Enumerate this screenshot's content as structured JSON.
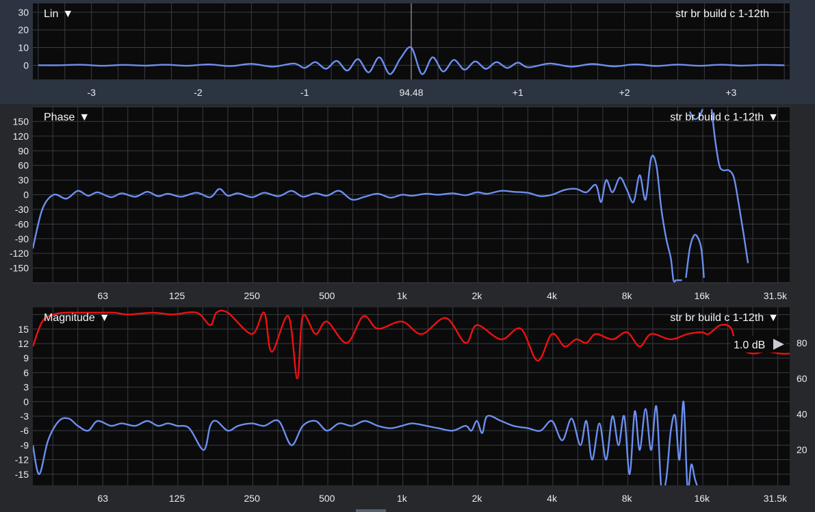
{
  "colors": {
    "background": "#2b3440",
    "plot_background": "#0b0b0c",
    "grid": "#3a3d42",
    "response_line": "#6c8ff0",
    "coherence_line": "#f01010",
    "text": "#e8ecf0"
  },
  "chart_data": [
    {
      "id": "impulse",
      "type": "line",
      "title": "Lin",
      "title_marker": "▼",
      "series_label": "str br build c 1-12th",
      "xlim": [
        -3.55,
        3.55
      ],
      "ylim": [
        -8,
        35
      ],
      "x_ticks": [
        -3,
        -2,
        -1,
        0,
        1,
        2,
        3
      ],
      "x_tick_labels": [
        "-3",
        "-2",
        "-1",
        "94.48",
        "+1",
        "+2",
        "+3"
      ],
      "y_ticks": [
        0,
        10,
        20,
        30
      ],
      "y_tick_labels": [
        "0",
        "10",
        "20",
        "30"
      ],
      "marker_x": 0,
      "grid": true,
      "series": [
        {
          "color": "#6c8ff0",
          "x": [
            -3.5,
            -3.3,
            -3.1,
            -2.9,
            -2.7,
            -2.5,
            -2.3,
            -2.1,
            -1.9,
            -1.7,
            -1.5,
            -1.3,
            -1.1,
            -1.0,
            -0.9,
            -0.8,
            -0.7,
            -0.6,
            -0.5,
            -0.4,
            -0.3,
            -0.2,
            -0.1,
            0,
            0.1,
            0.2,
            0.3,
            0.4,
            0.5,
            0.6,
            0.7,
            0.8,
            0.9,
            1.0,
            1.1,
            1.3,
            1.5,
            1.7,
            1.9,
            2.1,
            2.3,
            2.5,
            2.7,
            2.9,
            3.1,
            3.3,
            3.5
          ],
          "values": [
            0,
            0,
            0.3,
            -0.3,
            0.2,
            -0.2,
            0.3,
            -0.3,
            0.5,
            -0.5,
            0.8,
            -0.8,
            1,
            -1.5,
            1.8,
            -2,
            2.5,
            -3,
            3.5,
            -4,
            4.5,
            -5,
            4,
            10,
            -5,
            4.5,
            -3.5,
            3,
            -2.5,
            2.2,
            -2,
            1.8,
            -1.5,
            1.5,
            -1.2,
            1,
            -0.8,
            0.7,
            -0.6,
            0.5,
            -0.4,
            0.4,
            -0.3,
            0.3,
            -0.2,
            0.2,
            0
          ]
        }
      ]
    },
    {
      "id": "phase",
      "type": "line",
      "title": "Phase",
      "title_marker": "▼",
      "series_label": "str br build c 1-12th",
      "series_marker": "▼",
      "x_scale": "log",
      "xlim": [
        33,
        36000
      ],
      "ylim": [
        -180,
        180
      ],
      "x_ticks": [
        63,
        125,
        250,
        500,
        1000,
        2000,
        4000,
        8000,
        16000,
        31500
      ],
      "x_tick_labels": [
        "63",
        "125",
        "250",
        "500",
        "1k",
        "2k",
        "4k",
        "8k",
        "16k",
        "31.5k"
      ],
      "y_ticks": [
        150,
        120,
        90,
        60,
        30,
        0,
        -30,
        -60,
        -90,
        -120,
        -150
      ],
      "y_tick_labels": [
        "150",
        "120",
        "90",
        "60",
        "30",
        "0",
        "-30",
        "-60",
        "-90",
        "-120",
        "-150"
      ],
      "grid": true,
      "series": [
        {
          "color": "#6c8ff0",
          "x": [
            33,
            36,
            40,
            45,
            50,
            55,
            60,
            68,
            75,
            85,
            95,
            105,
            115,
            130,
            150,
            170,
            185,
            200,
            220,
            250,
            280,
            320,
            360,
            400,
            450,
            500,
            560,
            630,
            710,
            800,
            900,
            1000,
            1100,
            1250,
            1400,
            1600,
            1800,
            2000,
            2200,
            2500,
            2800,
            3200,
            3600,
            4000,
            4500,
            5000,
            5500,
            6000,
            6300,
            6600,
            7000,
            7500,
            8000,
            8500,
            9000,
            9500,
            10000,
            10500,
            11000,
            11500,
            12000,
            12300,
            12600,
            12900,
            13100,
            13300
          ],
          "values": [
            -110,
            -30,
            0,
            -8,
            8,
            -2,
            5,
            -5,
            3,
            -4,
            6,
            -3,
            2,
            -4,
            4,
            -5,
            12,
            -2,
            3,
            -5,
            4,
            -3,
            8,
            -4,
            3,
            -2,
            8,
            -10,
            -4,
            2,
            -6,
            0,
            -2,
            2,
            0,
            3,
            -1,
            5,
            2,
            8,
            6,
            4,
            -3,
            0,
            10,
            12,
            5,
            20,
            -15,
            30,
            5,
            35,
            10,
            -15,
            40,
            -10,
            75,
            60,
            -30,
            -90,
            -130,
            -175,
            -175,
            -175,
            -175,
            -175
          ]
        },
        {
          "color": "#6c8ff0",
          "x": [
            13800,
            14300,
            14800,
            15300,
            15900,
            16300
          ],
          "values": [
            -170,
            -110,
            -85,
            -85,
            -110,
            -170
          ]
        },
        {
          "color": "#6c8ff0",
          "x": [
            14300,
            14900,
            15600,
            16100
          ],
          "values": [
            170,
            155,
            160,
            175
          ]
        },
        {
          "color": "#6c8ff0",
          "x": [
            17500,
            18100,
            18800,
            19500,
            20500,
            21500,
            22500,
            23500,
            24500
          ],
          "values": [
            175,
            110,
            60,
            50,
            50,
            35,
            -20,
            -80,
            -140
          ]
        }
      ]
    },
    {
      "id": "magnitude",
      "type": "line",
      "title": "Magnitude",
      "title_marker": "▼",
      "series_label": "str br build c 1-12th",
      "series_marker": "▼",
      "x_scale": "log",
      "xlim": [
        33,
        36000
      ],
      "ylim": [
        -17.3,
        19.5
      ],
      "x_ticks": [
        63,
        125,
        250,
        500,
        1000,
        2000,
        4000,
        8000,
        16000,
        31500
      ],
      "x_tick_labels": [
        "63",
        "125",
        "250",
        "500",
        "1k",
        "2k",
        "4k",
        "8k",
        "16k",
        "31.5k"
      ],
      "y_ticks": [
        15,
        12,
        9,
        6,
        3,
        0,
        -3,
        -6,
        -9,
        -12,
        -15
      ],
      "y_tick_labels": [
        "15",
        "12",
        "9",
        "6",
        "3",
        "0",
        "-3",
        "-6",
        "-9",
        "-12",
        "-15"
      ],
      "right_axis_ticks": [
        80,
        60,
        40,
        20
      ],
      "right_axis_tick_labels": [
        "80",
        "60",
        "40",
        "20"
      ],
      "right_axis_ylim": [
        0,
        100
      ],
      "scale_readout": "1.0 dB",
      "grid": true,
      "series": [
        {
          "color": "#6c8ff0",
          "x": [
            33,
            35,
            38,
            42,
            46,
            50,
            55,
            60,
            68,
            75,
            85,
            95,
            105,
            115,
            125,
            140,
            160,
            170,
            180,
            200,
            220,
            250,
            280,
            320,
            360,
            400,
            450,
            500,
            560,
            630,
            710,
            800,
            900,
            1000,
            1100,
            1250,
            1400,
            1600,
            1800,
            1900,
            2000,
            2100,
            2200,
            2500,
            2800,
            3200,
            3600,
            4000,
            4400,
            4800,
            5200,
            5500,
            5800,
            6200,
            6600,
            7000,
            7400,
            7800,
            8200,
            8600,
            9000,
            9500,
            10000,
            10500,
            11000,
            11500,
            12000,
            12500,
            13000,
            13500,
            14000,
            14500,
            15000,
            15500,
            16000,
            16500,
            17000,
            17500,
            18000
          ],
          "values": [
            -9,
            -15,
            -8,
            -4,
            -3.5,
            -5,
            -6,
            -4,
            -5,
            -4.5,
            -5,
            -4,
            -5,
            -4.5,
            -5,
            -5.5,
            -10,
            -5,
            -4,
            -6,
            -5,
            -4.5,
            -5,
            -4,
            -9,
            -5,
            -4,
            -6,
            -4.5,
            -5,
            -4,
            -5,
            -5.5,
            -5,
            -4.5,
            -5,
            -5.5,
            -6,
            -5,
            -6,
            -4,
            -6.5,
            -3,
            -4,
            -5,
            -5.5,
            -6,
            -4,
            -8,
            -3.5,
            -9,
            -4,
            -12,
            -4.5,
            -12,
            -3,
            -9,
            -3,
            -15,
            -2,
            -10,
            -1.5,
            -10,
            -1,
            -18,
            -16,
            -6,
            -3,
            -12,
            0,
            -18,
            -13,
            -16,
            -18,
            -18,
            -18,
            -18,
            -18,
            -18
          ]
        },
        {
          "color": "#f01010",
          "axis": "right",
          "x": [
            33,
            36,
            40,
            45,
            50,
            60,
            70,
            80,
            100,
            120,
            150,
            170,
            180,
            200,
            250,
            280,
            300,
            350,
            380,
            400,
            450,
            500,
            600,
            700,
            800,
            1000,
            1200,
            1500,
            1800,
            2000,
            2500,
            3000,
            3500,
            4000,
            4500,
            5000,
            5500,
            6000,
            7000,
            8000,
            9000,
            10000,
            12000,
            14000,
            16000,
            17000,
            19000,
            21000,
            22000,
            23000,
            24000,
            26000,
            28000,
            30000,
            33000,
            36000
          ],
          "values": [
            78,
            92,
            96,
            97,
            97,
            97,
            97,
            96,
            97,
            96,
            97,
            90,
            97,
            97,
            85,
            97,
            75,
            95,
            60,
            95,
            85,
            92,
            80,
            95,
            88,
            92,
            85,
            94,
            80,
            90,
            82,
            88,
            70,
            85,
            78,
            82,
            80,
            85,
            82,
            86,
            78,
            85,
            82,
            85,
            86,
            85,
            90,
            88,
            76,
            78,
            75,
            74,
            75,
            75,
            74,
            74
          ]
        }
      ]
    }
  ]
}
